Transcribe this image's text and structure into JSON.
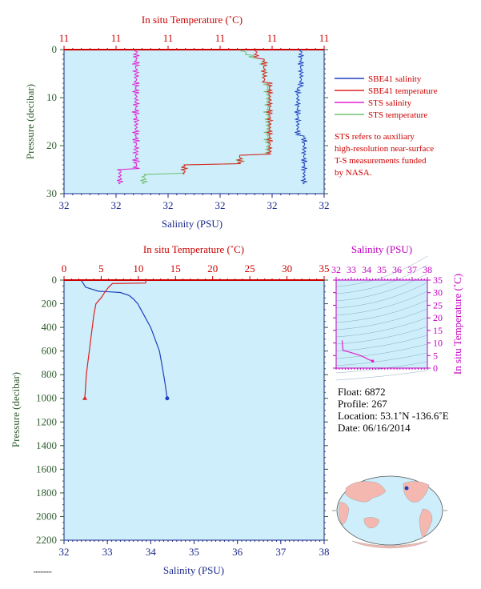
{
  "chart_data": [
    {
      "type": "line",
      "panel": "surface-profile",
      "top_axis_title": "In situ Temperature (˚C)",
      "bottom_axis_title": "Salinity (PSU)",
      "y_axis_title": "Pressure (decibar)",
      "top_ticks": [
        "11",
        "11",
        "11",
        "11",
        "11",
        "11"
      ],
      "bottom_ticks": [
        "32",
        "32",
        "32",
        "32",
        "32",
        "32"
      ],
      "y_ticks": [
        "0",
        "10",
        "20",
        "30"
      ],
      "ylim": [
        0,
        30
      ],
      "series": [
        {
          "name": "SBE41 salinity",
          "color": "#1f3fbf"
        },
        {
          "name": "SBE41 temperature",
          "color": "#e02020"
        },
        {
          "name": "STS salinity",
          "color": "#e020d0"
        },
        {
          "name": "STS temperature",
          "color": "#70c070"
        }
      ],
      "note": [
        "STS refers to auxiliary",
        "high-resolution near-surface",
        "T-S measurements funded",
        "by NASA."
      ]
    },
    {
      "type": "line",
      "panel": "full-profile",
      "top_axis_title": "In situ Temperature (˚C)",
      "bottom_axis_title": "Salinity (PSU)",
      "y_axis_title": "Pressure (decibar)",
      "top_ticks": [
        "0",
        "5",
        "10",
        "15",
        "20",
        "25",
        "30",
        "35"
      ],
      "bottom_ticks": [
        "32",
        "33",
        "34",
        "35",
        "36",
        "37",
        "38"
      ],
      "y_ticks": [
        "0",
        "200",
        "400",
        "600",
        "800",
        "1000",
        "1200",
        "1400",
        "1600",
        "1800",
        "2000",
        "2200"
      ],
      "xlim_salinity": [
        32,
        38
      ],
      "xlim_temperature": [
        0,
        35
      ],
      "ylim": [
        0,
        2200
      ],
      "series": [
        {
          "name": "salinity",
          "color": "#1f3fbf",
          "points": [
            [
              32.4,
              5
            ],
            [
              32.5,
              60
            ],
            [
              32.8,
              95
            ],
            [
              33.1,
              100
            ],
            [
              33.3,
              105
            ],
            [
              33.5,
              130
            ],
            [
              33.6,
              160
            ],
            [
              33.7,
              200
            ],
            [
              33.85,
              300
            ],
            [
              34.0,
              400
            ],
            [
              34.1,
              500
            ],
            [
              34.2,
              600
            ],
            [
              34.25,
              700
            ],
            [
              34.32,
              850
            ],
            [
              34.38,
              1000
            ]
          ]
        },
        {
          "name": "temperature",
          "color": "#e02020",
          "points": [
            [
              11.0,
              0
            ],
            [
              11.0,
              25
            ],
            [
              6.5,
              30
            ],
            [
              6.0,
              60
            ],
            [
              5.5,
              100
            ],
            [
              5.0,
              150
            ],
            [
              4.3,
              200
            ],
            [
              4.0,
              300
            ],
            [
              3.8,
              400
            ],
            [
              3.6,
              500
            ],
            [
              3.4,
              600
            ],
            [
              3.2,
              700
            ],
            [
              3.0,
              800
            ],
            [
              2.8,
              1000
            ]
          ]
        }
      ]
    },
    {
      "type": "line",
      "panel": "ts-diagram",
      "top_axis_title": "Salinity (PSU)",
      "right_axis_title": "In situ Temperature (˚C)",
      "top_ticks": [
        "32",
        "33",
        "34",
        "35",
        "36",
        "37",
        "38"
      ],
      "right_ticks": [
        "0",
        "5",
        "10",
        "15",
        "20",
        "25",
        "30",
        "35"
      ],
      "xlim": [
        32,
        38
      ],
      "ylim": [
        0,
        35
      ],
      "series": [
        {
          "name": "t-s",
          "color": "#e020d0",
          "points": [
            [
              32.4,
              11.0
            ],
            [
              32.45,
              7.0
            ],
            [
              32.8,
              6.5
            ],
            [
              33.2,
              5.8
            ],
            [
              33.6,
              5.0
            ],
            [
              33.9,
              4.2
            ],
            [
              34.1,
              3.5
            ],
            [
              34.4,
              2.8
            ]
          ]
        }
      ]
    }
  ],
  "info": {
    "float": "Float:  6872",
    "profile": "Profile:  267",
    "location": "Location:  53.1˚N  -136.6˚E",
    "date": "Date:  06/16/2014"
  },
  "colors": {
    "plot_background": "#cdeefa",
    "red": "#cc0000",
    "blue": "#1b2a8a",
    "green": "#2f5d2f",
    "magenta": "#c000c0"
  }
}
